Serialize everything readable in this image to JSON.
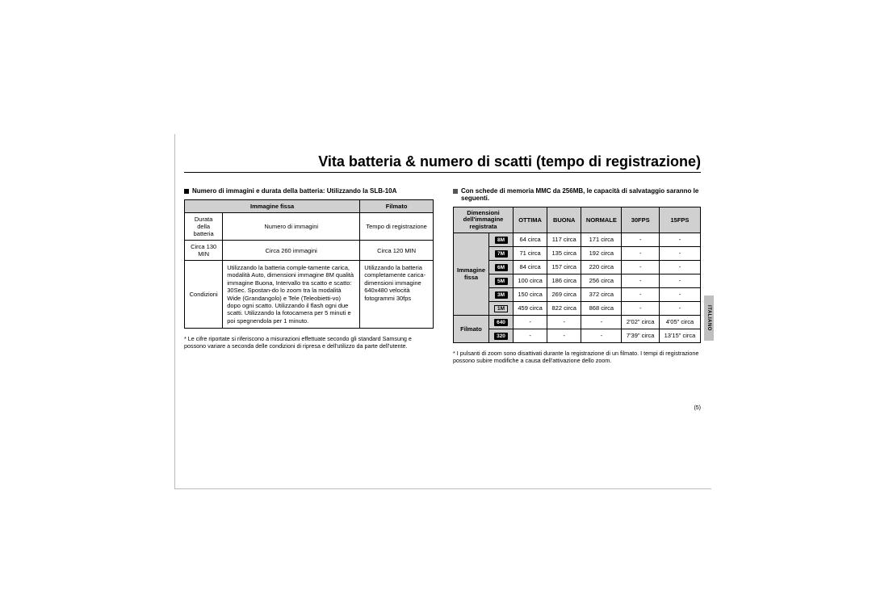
{
  "title": "Vita batteria & numero di scatti (tempo di registrazione)",
  "sidetab": "ITALIANO",
  "pageNumber": "(5)",
  "left": {
    "heading": "Numero di immagini e durata della batteria:  Utilizzando la  SLB-10A",
    "colhead_still": "Immagine fissa",
    "colhead_movie": "Filmato",
    "row1_a": "Durata della batteria",
    "row1_b": "Numero di immagini",
    "row1_c": "Tempo di registrazione",
    "row2_a": "Circa 130 MIN",
    "row2_b": "Circa 260 immagini",
    "row2_c": "Circa 120 MIN",
    "cond_label": "Condizioni",
    "cond_still": "Utilizzando la batteria comple-tamente carica, modalità Auto, dimensioni immagine 8M qualità immagine Buona, Intervallo tra scatto e scatto: 30Sec. Spostan-do lo zoom tra la modalità Wide (Grandangolo) e Tele (Teleobietti-vo) dopo ogni scatto. Utilizzando il flash ogni due scatti. Utilizzando la fotocamera per 5 minuti e poi spegnendola per 1 minuto.",
    "cond_movie": "Utilizzando la batteria completamente carica-dimensioni immagine 640x480 velocità fotogrammi 30fps",
    "footnote": "* Le cifre riportate si riferiscono a misurazioni effettuate secondo gli standard Samsung e possono variare a seconda delle condizioni di ripresa e dell'utilizzo da parte dell'utente."
  },
  "right": {
    "heading": "Con schede di memoria MMC da 256MB, le capacità di salvataggio saranno le seguenti.",
    "head_dim": "Dimensioni dell'immagine registrata",
    "head_ottima": "OTTIMA",
    "head_buona": "BUONA",
    "head_normale": "NORMALE",
    "head_30": "30FPS",
    "head_15": "15FPS",
    "rowhead_still": "Immagine fissa",
    "rowhead_movie": "Filmato",
    "badges": [
      "8M",
      "7M",
      "6M",
      "5M",
      "3M",
      "1M",
      "640",
      "320"
    ],
    "rows": [
      [
        "64 circa",
        "117 circa",
        "171 circa",
        "-",
        "-"
      ],
      [
        "71 circa",
        "135 circa",
        "192 circa",
        "-",
        "-"
      ],
      [
        "84 circa",
        "157 circa",
        "220 circa",
        "-",
        "-"
      ],
      [
        "100 circa",
        "186 circa",
        "256 circa",
        "-",
        "-"
      ],
      [
        "150 circa",
        "269 circa",
        "372 circa",
        "-",
        "-"
      ],
      [
        "459 circa",
        "822 circa",
        "868 circa",
        "-",
        "-"
      ],
      [
        "-",
        "-",
        "-",
        "2'02\" circa",
        "4'05\" circa"
      ],
      [
        "-",
        "-",
        "-",
        "7'39\" circa",
        "13'15\" circa"
      ]
    ],
    "footnote": "* I pulsanti di zoom sono disattivati durante la registrazione di un filmato. I tempi di registrazione possono subire modifiche a causa dell'attivazione dello zoom."
  }
}
